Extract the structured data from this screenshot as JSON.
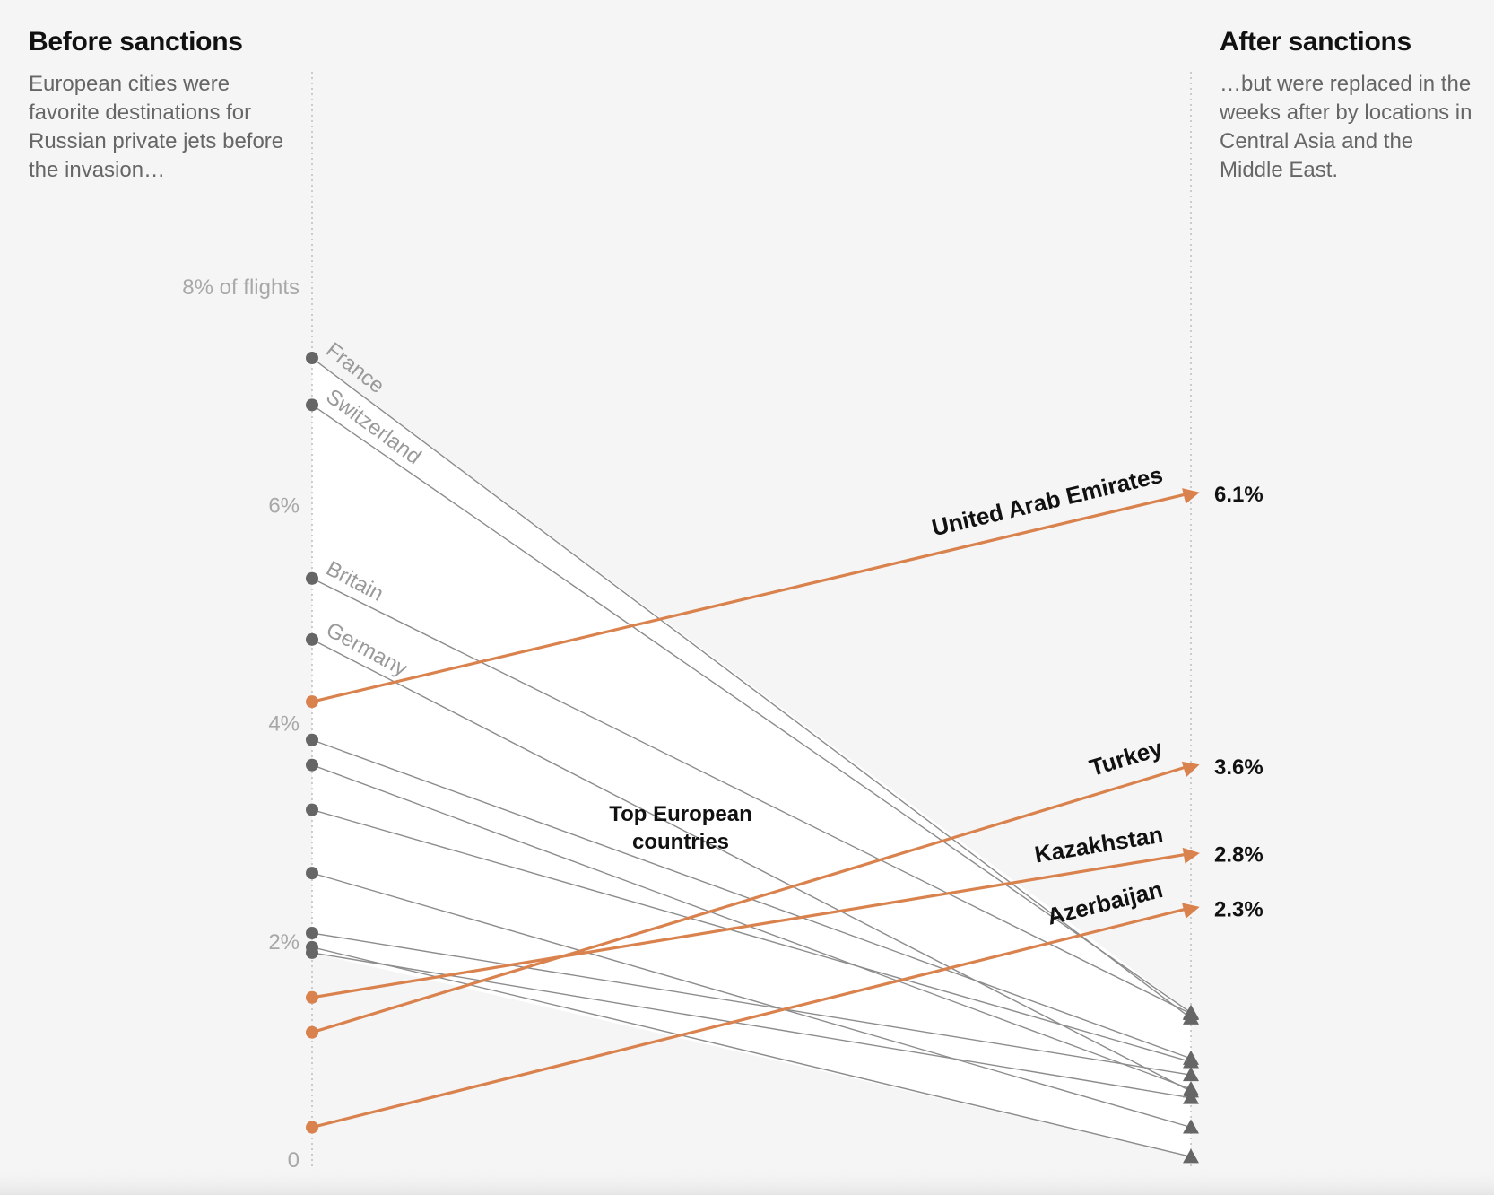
{
  "chart_data": {
    "type": "slope",
    "left_title": "Before sanctions",
    "left_description": "European cities were favorite destinations for Russian private jets before the invasion…",
    "right_title": "After sanctions",
    "right_description": "…but were replaced in the weeks after by locations in Central Asia and the Middle East.",
    "y_axis": {
      "min": 0,
      "max": 8,
      "ticks": [
        {
          "value": 8,
          "label": "8% of flights"
        },
        {
          "value": 6,
          "label": "6%"
        },
        {
          "value": 4,
          "label": "4%"
        },
        {
          "value": 2,
          "label": "2%"
        },
        {
          "value": 0,
          "label": "0"
        }
      ]
    },
    "annotation": {
      "line1": "Top European",
      "line2": "countries"
    },
    "series": [
      {
        "name": "France",
        "before": 7.35,
        "after": 1.3,
        "group": "europe",
        "labeled": true
      },
      {
        "name": "Switzerland",
        "before": 6.92,
        "after": 1.35,
        "group": "europe",
        "labeled": true
      },
      {
        "name": "Britain",
        "before": 5.33,
        "after": 1.34,
        "group": "europe",
        "labeled": true
      },
      {
        "name": "Germany",
        "before": 4.77,
        "after": 0.63,
        "group": "europe",
        "labeled": true
      },
      {
        "name": "",
        "before": 3.85,
        "after": 0.93,
        "group": "europe",
        "labeled": false
      },
      {
        "name": "",
        "before": 3.62,
        "after": 0.65,
        "group": "europe",
        "labeled": false
      },
      {
        "name": "",
        "before": 3.21,
        "after": 0.9,
        "group": "europe",
        "labeled": false
      },
      {
        "name": "",
        "before": 2.63,
        "after": 0.3,
        "group": "europe",
        "labeled": false
      },
      {
        "name": "",
        "before": 2.08,
        "after": 0.78,
        "group": "europe",
        "labeled": false
      },
      {
        "name": "",
        "before": 1.95,
        "after": 0.03,
        "group": "europe",
        "labeled": false
      },
      {
        "name": "",
        "before": 1.9,
        "after": 0.57,
        "group": "europe",
        "labeled": false
      },
      {
        "name": "United Arab Emirates",
        "before": 4.2,
        "after": 6.1,
        "group": "new",
        "value_label": "6.1%"
      },
      {
        "name": "Turkey",
        "before": 1.17,
        "after": 3.6,
        "group": "new",
        "value_label": "3.6%"
      },
      {
        "name": "Kazakhstan",
        "before": 1.49,
        "after": 2.8,
        "group": "new",
        "value_label": "2.8%"
      },
      {
        "name": "Azerbaijan",
        "before": 0.3,
        "after": 2.3,
        "group": "new",
        "value_label": "2.3%"
      }
    ]
  },
  "colors": {
    "orange": "#d9824d",
    "gray_line": "#8c8c8c",
    "gray_dot": "#666666"
  }
}
